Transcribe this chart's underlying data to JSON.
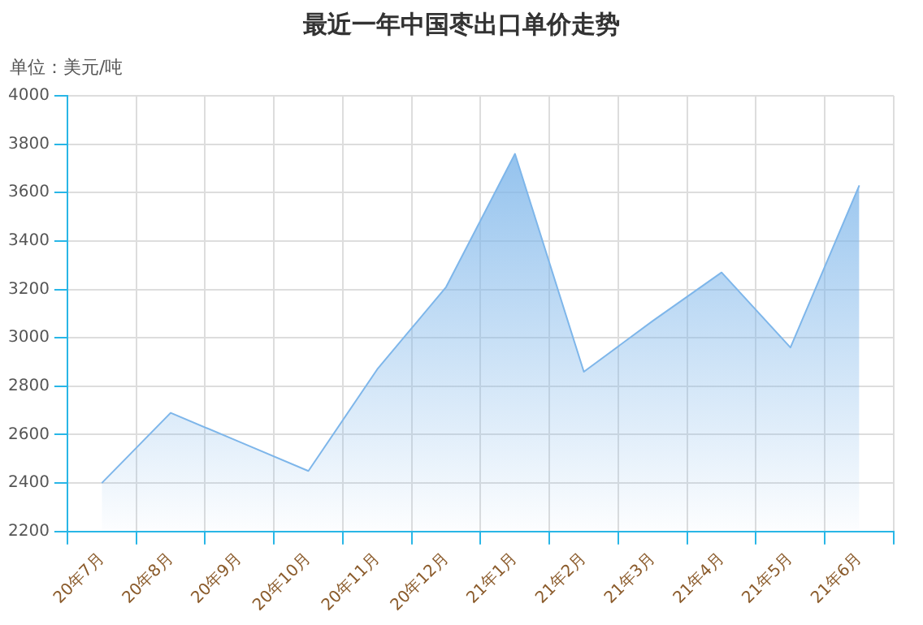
{
  "chart_data": {
    "type": "area",
    "title": "最近一年中国枣出口单价走势",
    "ylabel": "单位：美元/吨",
    "categories": [
      "20年7月",
      "20年8月",
      "20年9月",
      "20年10月",
      "20年11月",
      "20年12月",
      "21年1月",
      "21年2月",
      "21年3月",
      "21年4月",
      "21年5月",
      "21年6月"
    ],
    "series": [
      {
        "color": "#7eb6ea",
        "values": [
          2400,
          2690,
          2570,
          2450,
          2870,
          3210,
          3760,
          2860,
          3070,
          3270,
          2960,
          3630
        ]
      }
    ],
    "ylim": [
      2200,
      4000
    ],
    "yticks": [
      2200,
      2400,
      2600,
      2800,
      3000,
      3200,
      3400,
      3600,
      3800,
      4000
    ],
    "grid": true,
    "legend": false
  }
}
